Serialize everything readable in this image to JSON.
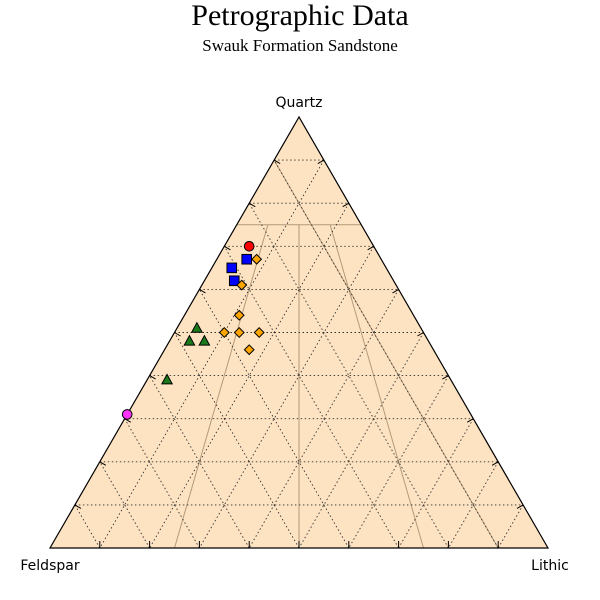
{
  "chart_data": {
    "type": "scatter",
    "subtype": "ternary",
    "title": "Petrographic Data",
    "subtitle": "Swauk Formation Sandstone",
    "corners": {
      "top": "Quartz",
      "left": "Feldspar",
      "right": "Lithic"
    },
    "grid": true,
    "background_color": "#fde3c1",
    "series": [
      {
        "marker": "circle",
        "color": "#ff0000",
        "points": [
          {
            "quartz": 70,
            "feldspar": 25,
            "lithic": 5
          }
        ]
      },
      {
        "marker": "square",
        "color": "#0000ff",
        "points": [
          {
            "quartz": 67,
            "feldspar": 27,
            "lithic": 6
          },
          {
            "quartz": 65,
            "feldspar": 31,
            "lithic": 4
          },
          {
            "quartz": 62,
            "feldspar": 32,
            "lithic": 6
          }
        ]
      },
      {
        "marker": "diamond",
        "color": "#ffa500",
        "points": [
          {
            "quartz": 67,
            "feldspar": 25,
            "lithic": 8
          },
          {
            "quartz": 61,
            "feldspar": 31,
            "lithic": 8
          },
          {
            "quartz": 54,
            "feldspar": 35,
            "lithic": 11
          },
          {
            "quartz": 50,
            "feldspar": 40,
            "lithic": 10
          },
          {
            "quartz": 50,
            "feldspar": 33,
            "lithic": 17
          },
          {
            "quartz": 50,
            "feldspar": 37,
            "lithic": 13
          },
          {
            "quartz": 46,
            "feldspar": 37,
            "lithic": 17
          }
        ]
      },
      {
        "marker": "triangle",
        "color": "#1a7a1a",
        "points": [
          {
            "quartz": 51,
            "feldspar": 45,
            "lithic": 4
          },
          {
            "quartz": 48,
            "feldspar": 48,
            "lithic": 4
          },
          {
            "quartz": 48,
            "feldspar": 45,
            "lithic": 7
          },
          {
            "quartz": 39,
            "feldspar": 57,
            "lithic": 4
          }
        ]
      },
      {
        "marker": "circle",
        "color": "#ff33ff",
        "points": [
          {
            "quartz": 31,
            "feldspar": 69,
            "lithic": 0
          }
        ]
      }
    ]
  }
}
